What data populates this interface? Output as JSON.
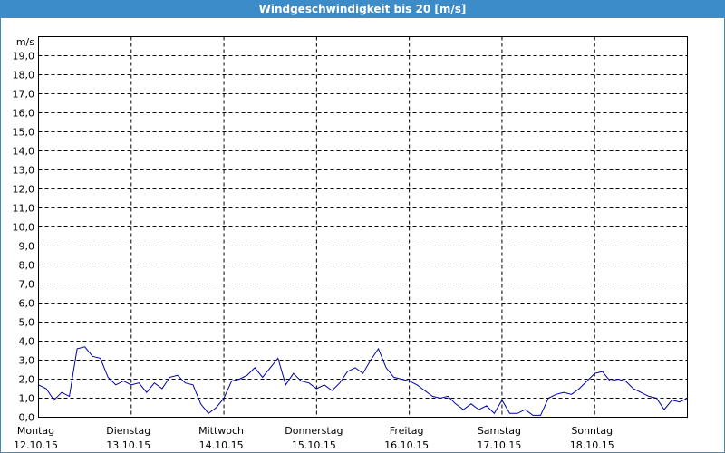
{
  "chart_data": {
    "type": "line",
    "title": "Windgeschwindigkeit bis 20 [m/s]",
    "y_unit": "m/s",
    "x": [
      0,
      2,
      4,
      6,
      8,
      10,
      12,
      14,
      16,
      18,
      20,
      22,
      24,
      26,
      28,
      30,
      32,
      34,
      36,
      38,
      40,
      42,
      44,
      46,
      48,
      50,
      52,
      54,
      56,
      58,
      60,
      62,
      64,
      66,
      68,
      70,
      72,
      74,
      76,
      78,
      80,
      82,
      84,
      86,
      88,
      90,
      92,
      94,
      96,
      98,
      100,
      102,
      104,
      106,
      108,
      110,
      112,
      114,
      116,
      118,
      120,
      122,
      124,
      126,
      128,
      130,
      132,
      134,
      136,
      138,
      140,
      142,
      144,
      146,
      148,
      150,
      152,
      154,
      156,
      158,
      160,
      162,
      164,
      166,
      168
    ],
    "series": [
      {
        "color": "#0000a0",
        "values": [
          1.7,
          1.5,
          0.9,
          1.3,
          1.1,
          3.6,
          3.7,
          3.2,
          3.1,
          2.1,
          1.7,
          1.9,
          1.7,
          1.8,
          1.3,
          1.8,
          1.5,
          2.1,
          2.2,
          1.8,
          1.7,
          0.7,
          0.2,
          0.5,
          1.0,
          1.9,
          2.0,
          2.2,
          2.6,
          2.1,
          2.6,
          3.1,
          1.7,
          2.3,
          1.9,
          1.8,
          1.5,
          1.7,
          1.4,
          1.8,
          2.4,
          2.6,
          2.3,
          3.0,
          3.6,
          2.6,
          2.1,
          2.0,
          1.9,
          1.7,
          1.4,
          1.1,
          1.0,
          1.1,
          0.7,
          0.4,
          0.7,
          0.4,
          0.6,
          0.2,
          0.9,
          0.2,
          0.2,
          0.4,
          0.1,
          0.1,
          1.0,
          1.2,
          1.3,
          1.2,
          1.5,
          1.9,
          2.3,
          2.4,
          1.9,
          2.0,
          1.9,
          1.5,
          1.3,
          1.1,
          1.0,
          0.4,
          0.9,
          0.8,
          1.0
        ]
      }
    ],
    "xlim": [
      0,
      168
    ],
    "xticks": [
      {
        "value": 0,
        "label": "Montag",
        "date": "12.10.15"
      },
      {
        "value": 24,
        "label": "Dienstag",
        "date": "13.10.15"
      },
      {
        "value": 48,
        "label": "Mittwoch",
        "date": "14.10.15"
      },
      {
        "value": 72,
        "label": "Donnerstag",
        "date": "15.10.15"
      },
      {
        "value": 96,
        "label": "Freitag",
        "date": "16.10.15"
      },
      {
        "value": 120,
        "label": "Samstag",
        "date": "17.10.15"
      },
      {
        "value": 144,
        "label": "Sonntag",
        "date": "18.10.15"
      }
    ],
    "ylim": [
      0,
      20
    ],
    "yticks": [
      {
        "value": 0,
        "label": "0,0"
      },
      {
        "value": 1,
        "label": "1,0"
      },
      {
        "value": 2,
        "label": "2,0"
      },
      {
        "value": 3,
        "label": "3,0"
      },
      {
        "value": 4,
        "label": "4,0"
      },
      {
        "value": 5,
        "label": "5,0"
      },
      {
        "value": 6,
        "label": "6,0"
      },
      {
        "value": 7,
        "label": "7,0"
      },
      {
        "value": 8,
        "label": "8,0"
      },
      {
        "value": 9,
        "label": "9,0"
      },
      {
        "value": 10,
        "label": "10,0"
      },
      {
        "value": 11,
        "label": "11,0"
      },
      {
        "value": 12,
        "label": "12,0"
      },
      {
        "value": 13,
        "label": "13,0"
      },
      {
        "value": 14,
        "label": "14,0"
      },
      {
        "value": 15,
        "label": "15,0"
      },
      {
        "value": 16,
        "label": "16,0"
      },
      {
        "value": 17,
        "label": "17,0"
      },
      {
        "value": 18,
        "label": "18,0"
      },
      {
        "value": 19,
        "label": "19,0"
      }
    ],
    "grid": true
  }
}
